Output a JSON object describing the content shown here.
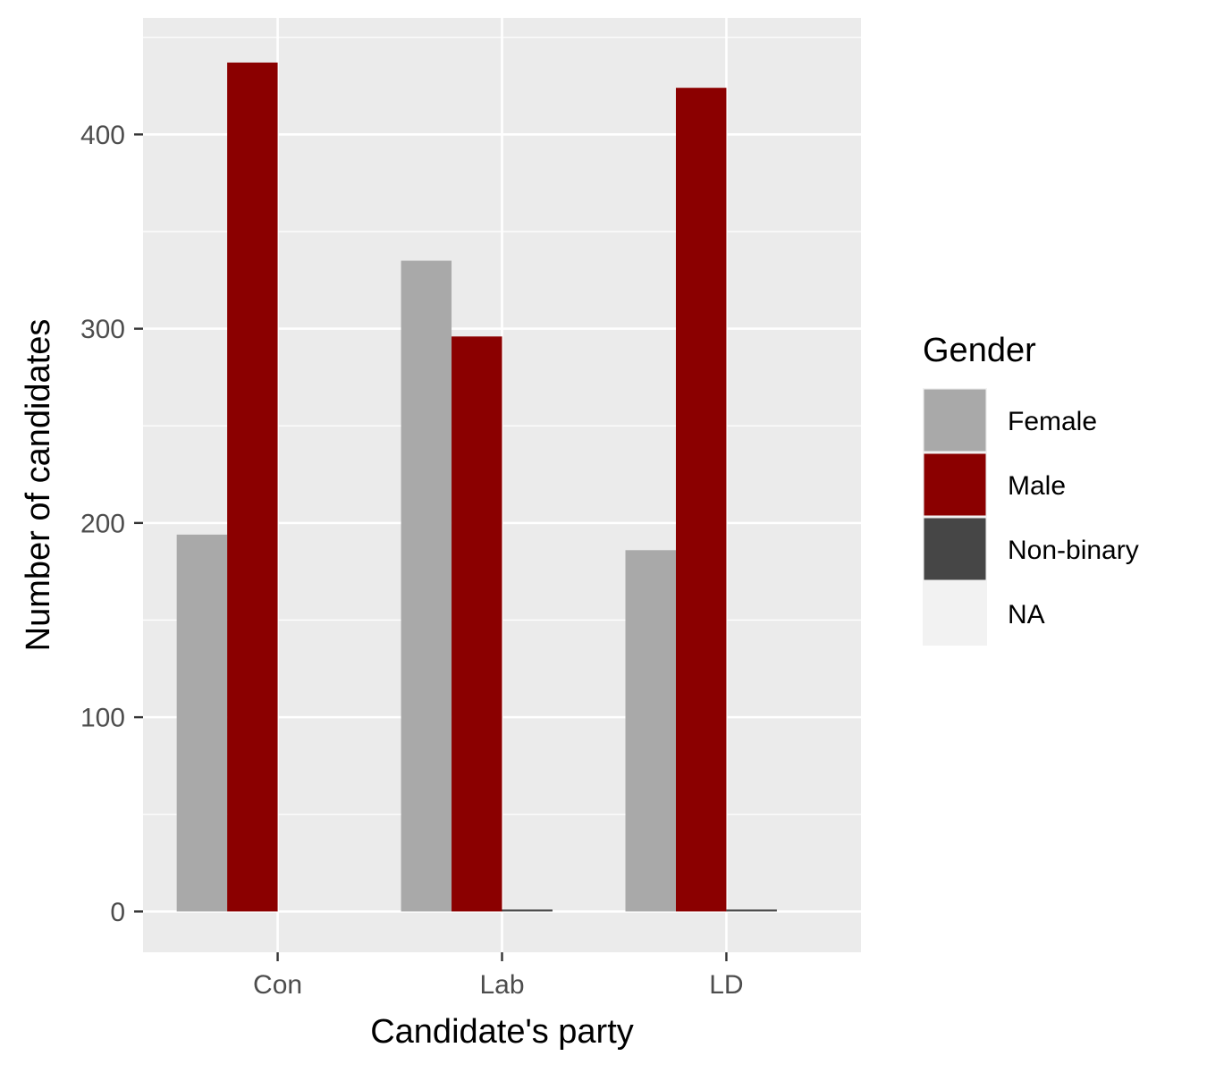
{
  "chart_data": {
    "type": "bar",
    "title": "",
    "xlabel": "Candidate's party",
    "ylabel": "Number of candidates",
    "categories": [
      "Con",
      "Lab",
      "LD"
    ],
    "ylim": [
      -21,
      460
    ],
    "yticks": [
      0,
      100,
      200,
      300,
      400
    ],
    "grid": true,
    "legend_position": "right",
    "legend_title": "Gender",
    "series": [
      {
        "name": "Female",
        "color": "#a9a9a9",
        "values": [
          194,
          335,
          186
        ]
      },
      {
        "name": "Male",
        "color": "#8b0000",
        "values": [
          437,
          296,
          424
        ]
      },
      {
        "name": "Non-binary",
        "color": "#464646",
        "values": [
          0,
          1,
          1
        ]
      },
      {
        "name": "NA",
        "color": "#f2f2f2",
        "values": [
          0,
          0,
          0
        ]
      }
    ],
    "panel_background": "#ebebeb",
    "grid_color": "#ffffff"
  }
}
